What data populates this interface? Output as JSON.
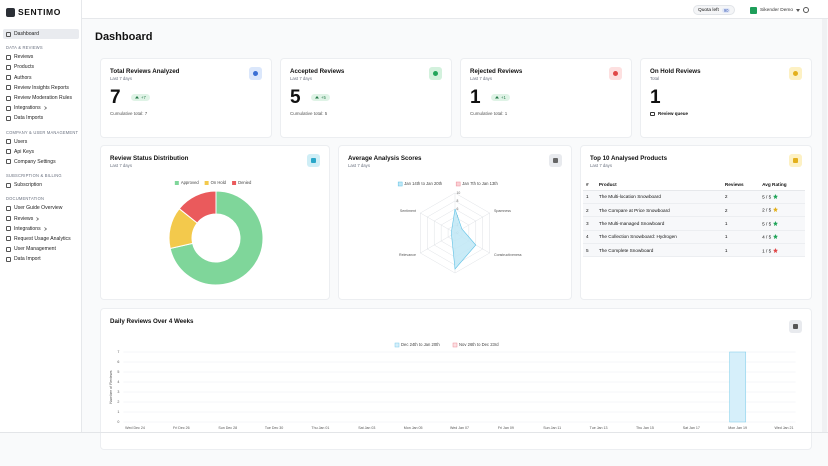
{
  "sidebar": {
    "brand": "SENTIMO",
    "active": "Dashboard",
    "sections": [
      {
        "title": "DATA & REVIEWS",
        "items": [
          {
            "label": "Reviews"
          },
          {
            "label": "Products"
          },
          {
            "label": "Authors"
          },
          {
            "label": "Review Insights Reports"
          },
          {
            "label": "Review Moderation Rules"
          },
          {
            "label": "Integrations",
            "submenu": true
          },
          {
            "label": "Data Imports"
          }
        ]
      },
      {
        "title": "COMPANY & USER MANAGEMENT",
        "items": [
          {
            "label": "Users"
          },
          {
            "label": "Api Keys"
          },
          {
            "label": "Company Settings"
          }
        ]
      },
      {
        "title": "SUBSCRIPTION & BILLING",
        "items": [
          {
            "label": "Subscription"
          }
        ]
      },
      {
        "title": "DOCUMENTATION",
        "items": [
          {
            "label": "User Guide Overview"
          },
          {
            "label": "Reviews",
            "submenu": true
          },
          {
            "label": "Integrations",
            "submenu": true
          },
          {
            "label": "Request Usage Analytics"
          },
          {
            "label": "User Management"
          },
          {
            "label": "Data Import"
          }
        ]
      }
    ]
  },
  "topbar": {
    "quota_label": "Quota left",
    "quota": "90",
    "user": "Sikender Demo"
  },
  "header": {
    "title": "Dashboard"
  },
  "stats": [
    {
      "title": "Total Reviews Analyzed",
      "period": "Last 7 days",
      "value": 7,
      "badge": "+7",
      "footer": "Cumulative total: 7",
      "color": "#dbe7fb",
      "icon_color": "#3b6fd4"
    },
    {
      "title": "Accepted Reviews",
      "period": "Last 7 days",
      "value": 5,
      "badge": "+5",
      "footer": "Cumulative total: 5",
      "color": "#d3f1dd",
      "icon_color": "#22a55a"
    },
    {
      "title": "Rejected Reviews",
      "period": "Last 7 days",
      "value": 1,
      "badge": "+1",
      "footer": "Cumulative total: 1",
      "color": "#fde0e0",
      "icon_color": "#e04848"
    },
    {
      "title": "On Hold Reviews",
      "period": "Total",
      "value": 1,
      "footer": "Review queue",
      "color": "#fdf1c4",
      "icon_color": "#e3b01c"
    }
  ],
  "top_products": {
    "title": "Top 10 Analysed Products",
    "subtitle": "Last 7 days",
    "columns": [
      "#",
      "Product",
      "Reviews",
      "Avg Rating"
    ],
    "rows": [
      [
        "1",
        "The Multi-location Snowboard",
        "2",
        "5 / 5"
      ],
      [
        "2",
        "The Compare at Price Snowboard",
        "2",
        "2 / 5"
      ],
      [
        "3",
        "The Multi-managed Snowboard",
        "1",
        "5 / 5"
      ],
      [
        "4",
        "The Collection Snowboard: Hydrogen",
        "1",
        "4 / 5"
      ],
      [
        "5",
        "The Complete Snowboard",
        "1",
        "1 / 5"
      ]
    ],
    "star_colors": [
      "#22a55a",
      "#e3b01c",
      "#22a55a",
      "#22a55a",
      "#e04848"
    ]
  },
  "chart_data": [
    {
      "type": "pie",
      "title": "Review Status Distribution",
      "subtitle": "Last 7 days",
      "categories": [
        "Approved",
        "On Hold",
        "Denied"
      ],
      "values": [
        5,
        1,
        1
      ],
      "colors": [
        "#7fd69a",
        "#f3c94c",
        "#ea5a5c"
      ],
      "donut": true
    },
    {
      "type": "radar",
      "title": "Average Analysis Scores",
      "subtitle": "Last 7 days",
      "categories": [
        null,
        "Spamness",
        "Constructiveness",
        null,
        "Relevance",
        "Sentiment"
      ],
      "rlim": [
        0,
        10
      ],
      "rticks": [
        0,
        2,
        4,
        6,
        8,
        10
      ],
      "series": [
        {
          "name": "Jan 14th to Jan 20th",
          "color": "#bfe7f6",
          "border": "#5fc2e6",
          "values": [
            6,
            2,
            6,
            9,
            1,
            1
          ]
        },
        {
          "name": "Jan 7th to Jan 13th",
          "color": "#f9d0d5",
          "border": "#ef8d99",
          "values": [
            0,
            0,
            0,
            0,
            0,
            0
          ]
        }
      ]
    },
    {
      "type": "bar",
      "title": "Daily Reviews Over 4 Weeks",
      "y_label": "Number of Reviews",
      "categories": [
        "Wed Dec 24",
        null,
        "Fri Dec 26",
        null,
        "Sun Dec 28",
        null,
        "Tue Dec 30",
        null,
        "Thu Jan 01",
        null,
        "Sat Jan 03",
        null,
        "Mon Jan 05",
        null,
        "Wed Jan 07",
        null,
        "Fri Jan 09",
        null,
        "Sun Jan 11",
        null,
        "Tue Jan 13",
        null,
        "Thu Jan 15",
        null,
        "Sat Jan 17",
        null,
        "Mon Jan 19",
        null,
        "Wed Jan 21"
      ],
      "series": [
        {
          "name": "Nov 26th to Dec 23rd",
          "color": "#fbe0e3",
          "border": "#ef8d99",
          "values": [
            0,
            0,
            0,
            0,
            0,
            0,
            0,
            0,
            0,
            0,
            0,
            0,
            0,
            0,
            0,
            0,
            0,
            0,
            0,
            0,
            0,
            0,
            0,
            0,
            0,
            0,
            0,
            0,
            0
          ]
        },
        {
          "name": "Dec 24th to Jan 20th",
          "color": "#d6effa",
          "border": "#7dcdea",
          "values": [
            0,
            0,
            0,
            0,
            0,
            0,
            0,
            0,
            0,
            0,
            0,
            0,
            0,
            0,
            0,
            0,
            0,
            0,
            0,
            0,
            0,
            0,
            0,
            0,
            0,
            0,
            7,
            0,
            0
          ]
        }
      ],
      "ylim": [
        0,
        7
      ],
      "yticks": [
        0,
        1,
        2,
        3,
        4,
        5,
        6,
        7
      ],
      "grid": true
    }
  ]
}
